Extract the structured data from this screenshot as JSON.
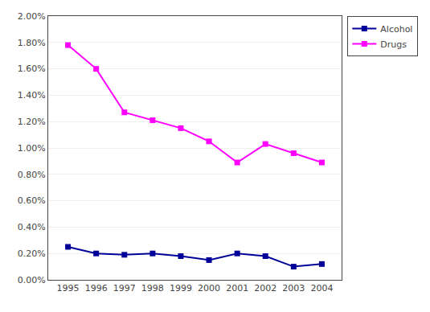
{
  "chart_data": {
    "type": "line",
    "x": [
      1995,
      1996,
      1997,
      1998,
      1999,
      2000,
      2001,
      2002,
      2003,
      2004
    ],
    "series": [
      {
        "name": "Alcohol",
        "color": "#000099",
        "values": [
          0.0025,
          0.002,
          0.0019,
          0.002,
          0.0018,
          0.0015,
          0.002,
          0.0018,
          0.001,
          0.0012
        ]
      },
      {
        "name": "Drugs",
        "color": "#FF00FF",
        "values": [
          0.0178,
          0.016,
          0.0127,
          0.0121,
          0.0115,
          0.0105,
          0.0089,
          0.0103,
          0.0096,
          0.0089
        ]
      }
    ],
    "marker": "square",
    "xlim": [
      1994.3,
      2004.7
    ],
    "xticks": [
      1995,
      1996,
      1997,
      1998,
      1999,
      2000,
      2001,
      2002,
      2003,
      2004
    ],
    "ylim": [
      0.0,
      0.02
    ],
    "yticks": [
      {
        "value": 0.0,
        "label": "0.00%"
      },
      {
        "value": 0.002,
        "label": "0.20%"
      },
      {
        "value": 0.004,
        "label": "0.40%"
      },
      {
        "value": 0.006,
        "label": "0.60%"
      },
      {
        "value": 0.008,
        "label": "0.80%"
      },
      {
        "value": 0.01,
        "label": "1.00%"
      },
      {
        "value": 0.012,
        "label": "1.20%"
      },
      {
        "value": 0.014,
        "label": "1.40%"
      },
      {
        "value": 0.016,
        "label": "1.60%"
      },
      {
        "value": 0.018,
        "label": "1.80%"
      },
      {
        "value": 0.02,
        "label": "2.00%"
      }
    ],
    "grid": "y",
    "legend": "right"
  }
}
